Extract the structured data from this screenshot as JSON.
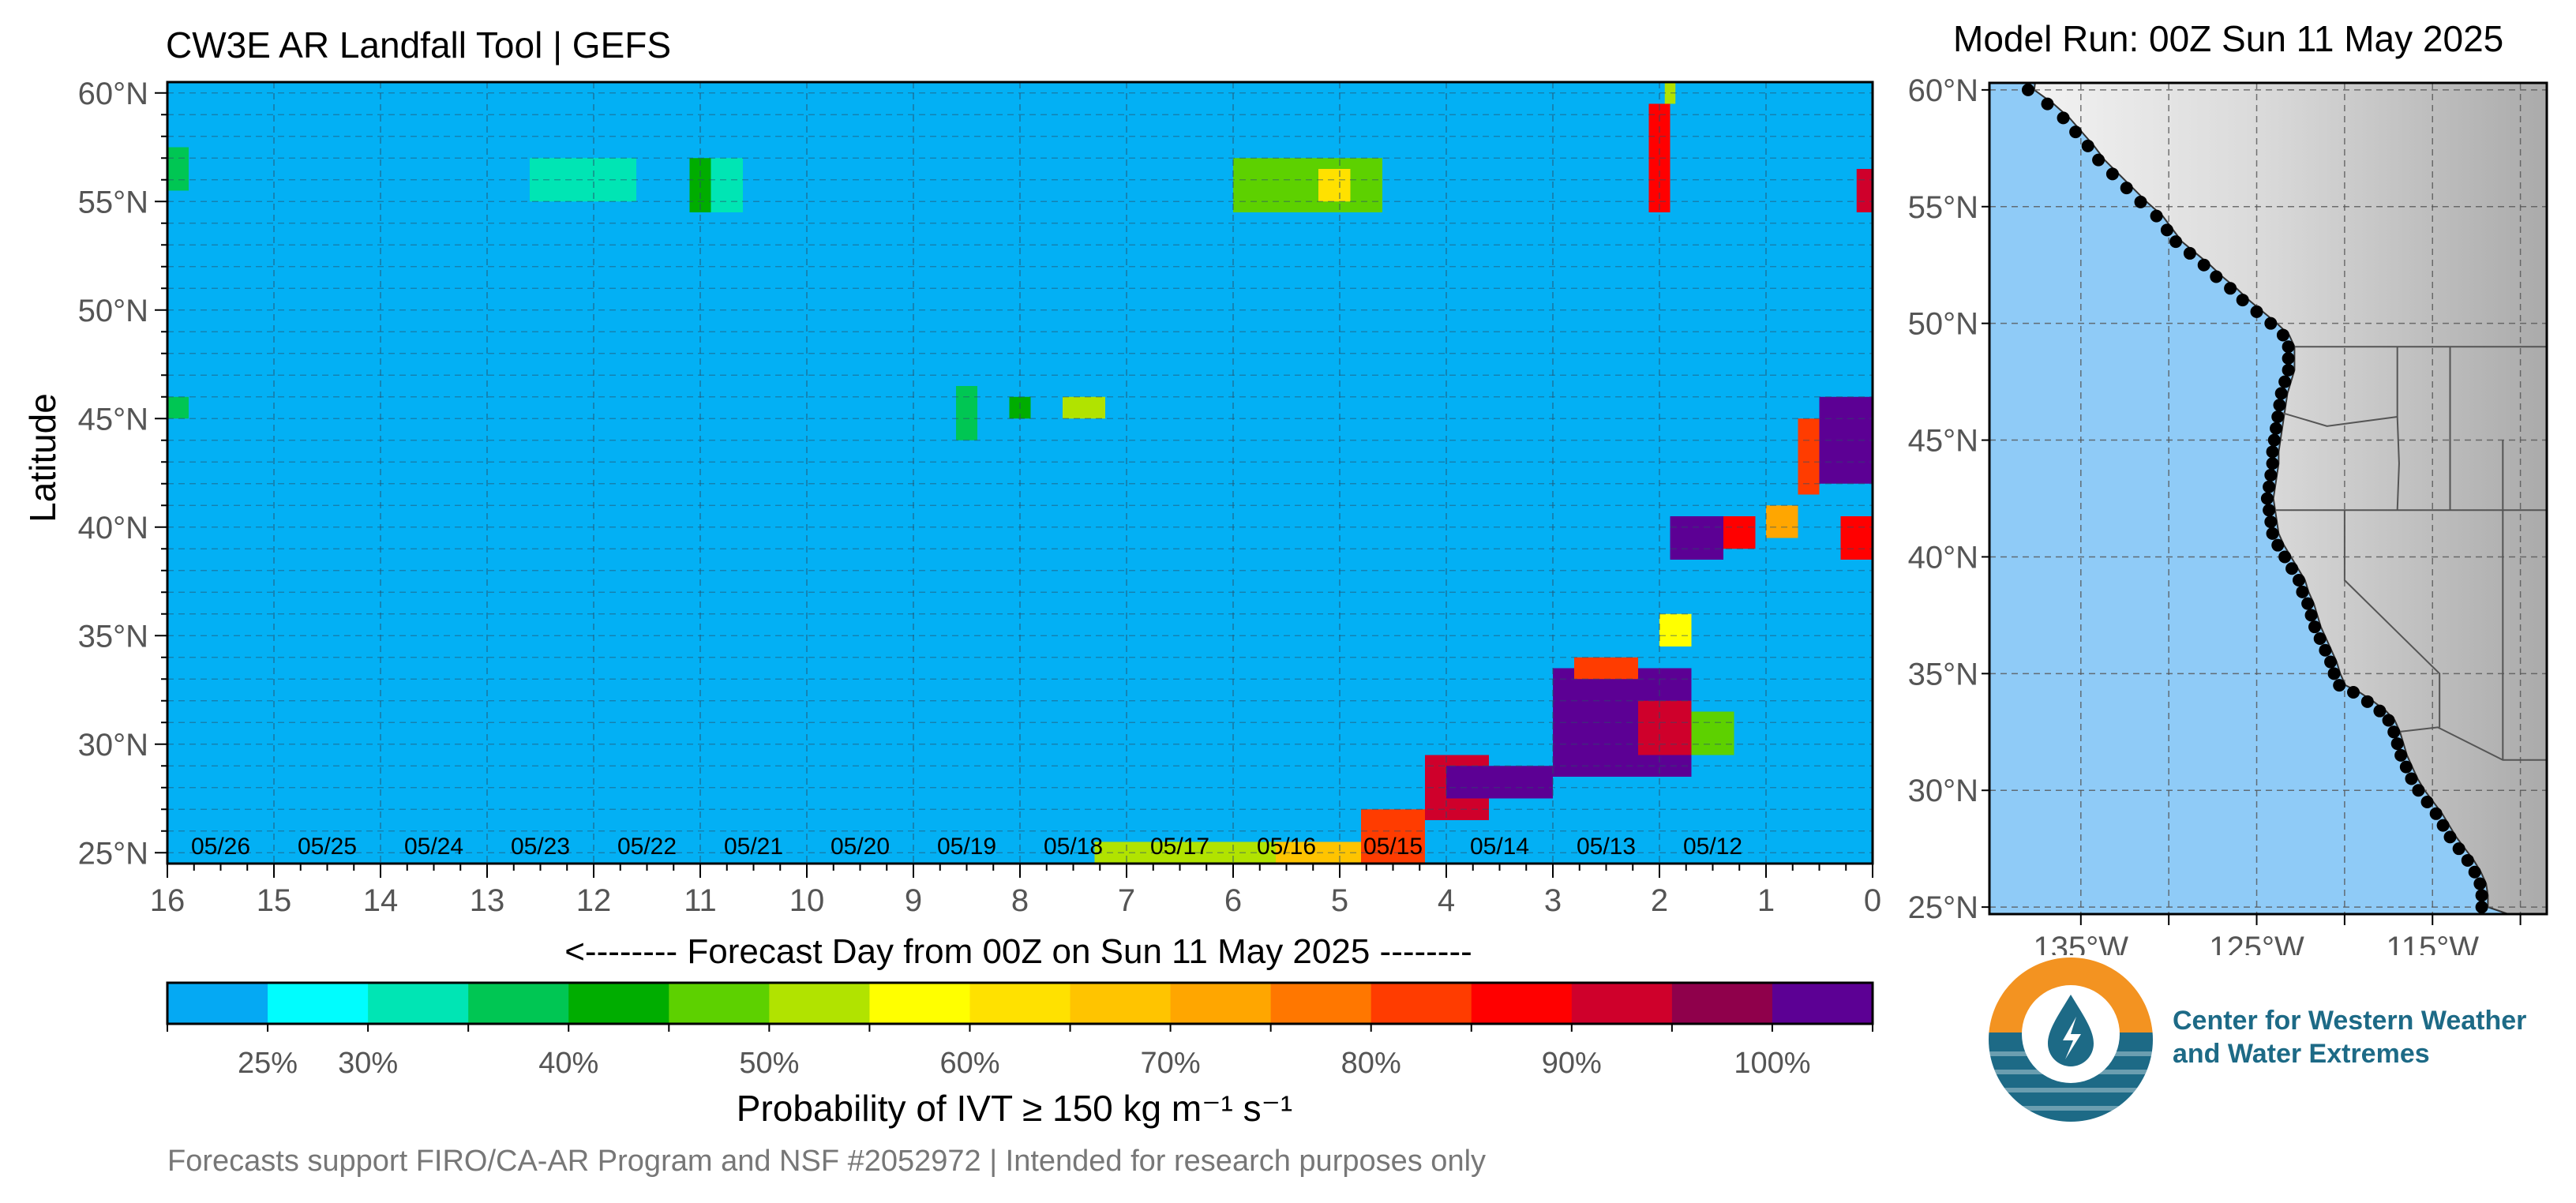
{
  "header": {
    "title": "CW3E AR Landfall Tool | GEFS",
    "model_run": "Model Run: 00Z Sun 11 May 2025"
  },
  "chart_data": [
    {
      "type": "heatmap",
      "title": "CW3E AR Landfall Tool | GEFS",
      "ylabel": "Latitude",
      "xlabel": "<-------- Forecast Day from 00Z on Sun 11 May 2025 --------",
      "x_ticks": [
        "16",
        "15",
        "14",
        "13",
        "12",
        "11",
        "10",
        "9",
        "8",
        "7",
        "6",
        "5",
        "4",
        "3",
        "2",
        "1",
        "0"
      ],
      "xlim": [
        16,
        0
      ],
      "y_ticks": [
        "25°N",
        "30°N",
        "35°N",
        "40°N",
        "45°N",
        "50°N",
        "55°N",
        "60°N"
      ],
      "ylim": [
        24.5,
        60.5
      ],
      "date_labels": [
        {
          "day": 15.5,
          "text": "05/26"
        },
        {
          "day": 14.5,
          "text": "05/25"
        },
        {
          "day": 13.5,
          "text": "05/24"
        },
        {
          "day": 12.5,
          "text": "05/23"
        },
        {
          "day": 11.5,
          "text": "05/22"
        },
        {
          "day": 10.5,
          "text": "05/21"
        },
        {
          "day": 9.5,
          "text": "05/20"
        },
        {
          "day": 8.5,
          "text": "05/19"
        },
        {
          "day": 7.5,
          "text": "05/18"
        },
        {
          "day": 6.5,
          "text": "05/17"
        },
        {
          "day": 5.5,
          "text": "05/16"
        },
        {
          "day": 4.5,
          "text": "05/15"
        },
        {
          "day": 3.5,
          "text": "05/14"
        },
        {
          "day": 2.5,
          "text": "05/13"
        },
        {
          "day": 1.5,
          "text": "05/12"
        }
      ],
      "background_color": "#03b0f4",
      "grid": true,
      "probability_cells": [
        {
          "day_from": 16.0,
          "day_to": 15.8,
          "lat_from": 55.5,
          "lat_to": 57.5,
          "p": 35
        },
        {
          "day_from": 16.0,
          "day_to": 15.8,
          "lat_from": 45.0,
          "lat_to": 46.0,
          "p": 35
        },
        {
          "day_from": 12.6,
          "day_to": 11.6,
          "lat_from": 55.0,
          "lat_to": 57.0,
          "p": 30
        },
        {
          "day_from": 11.1,
          "day_to": 10.6,
          "lat_from": 54.5,
          "lat_to": 57.0,
          "p": 30
        },
        {
          "day_from": 11.1,
          "day_to": 10.9,
          "lat_from": 54.5,
          "lat_to": 57.0,
          "p": 40
        },
        {
          "day_from": 8.6,
          "day_to": 8.4,
          "lat_from": 44.0,
          "lat_to": 46.5,
          "p": 35
        },
        {
          "day_from": 8.1,
          "day_to": 7.9,
          "lat_from": 45.0,
          "lat_to": 46.0,
          "p": 40
        },
        {
          "day_from": 7.6,
          "day_to": 7.2,
          "lat_from": 45.0,
          "lat_to": 46.0,
          "p": 50
        },
        {
          "day_from": 6.0,
          "day_to": 4.6,
          "lat_from": 54.5,
          "lat_to": 57.0,
          "p": 45
        },
        {
          "day_from": 5.2,
          "day_to": 4.9,
          "lat_from": 55.0,
          "lat_to": 56.5,
          "p": 60
        },
        {
          "day_from": 7.3,
          "day_to": 5.6,
          "lat_from": 24.5,
          "lat_to": 25.5,
          "p": 50
        },
        {
          "day_from": 5.6,
          "day_to": 4.8,
          "lat_from": 24.5,
          "lat_to": 25.5,
          "p": 65
        },
        {
          "day_from": 4.8,
          "day_to": 4.2,
          "lat_from": 24.5,
          "lat_to": 27.0,
          "p": 80
        },
        {
          "day_from": 4.2,
          "day_to": 3.6,
          "lat_from": 26.5,
          "lat_to": 29.5,
          "p": 90
        },
        {
          "day_from": 4.0,
          "day_to": 3.0,
          "lat_from": 27.5,
          "lat_to": 29.0,
          "p": 100
        },
        {
          "day_from": 3.0,
          "day_to": 1.7,
          "lat_from": 28.5,
          "lat_to": 33.5,
          "p": 100
        },
        {
          "day_from": 2.8,
          "day_to": 2.2,
          "lat_from": 33.0,
          "lat_to": 34.0,
          "p": 80
        },
        {
          "day_from": 2.2,
          "day_to": 1.7,
          "lat_from": 29.5,
          "lat_to": 32.0,
          "p": 90
        },
        {
          "day_from": 1.7,
          "day_to": 1.3,
          "lat_from": 29.5,
          "lat_to": 31.5,
          "p": 45
        },
        {
          "day_from": 2.0,
          "day_to": 1.7,
          "lat_from": 34.5,
          "lat_to": 36.0,
          "p": 55
        },
        {
          "day_from": 1.9,
          "day_to": 1.4,
          "lat_from": 38.5,
          "lat_to": 40.5,
          "p": 100
        },
        {
          "day_from": 1.4,
          "day_to": 1.1,
          "lat_from": 39.0,
          "lat_to": 40.5,
          "p": 85
        },
        {
          "day_from": 1.0,
          "day_to": 0.7,
          "lat_from": 39.5,
          "lat_to": 41.0,
          "p": 70
        },
        {
          "day_from": 0.5,
          "day_to": 0.0,
          "lat_from": 42.0,
          "lat_to": 46.0,
          "p": 100
        },
        {
          "day_from": 0.7,
          "day_to": 0.5,
          "lat_from": 41.5,
          "lat_to": 45.0,
          "p": 80
        },
        {
          "day_from": 0.3,
          "day_to": 0.0,
          "lat_from": 38.5,
          "lat_to": 40.5,
          "p": 85
        },
        {
          "day_from": 2.1,
          "day_to": 1.9,
          "lat_from": 54.5,
          "lat_to": 59.5,
          "p": 85
        },
        {
          "day_from": 1.95,
          "day_to": 1.85,
          "lat_from": 59.5,
          "lat_to": 60.5,
          "p": 50
        },
        {
          "day_from": 0.15,
          "day_to": 0.0,
          "lat_from": 54.5,
          "lat_to": 56.5,
          "p": 90
        }
      ],
      "colorbar": {
        "colors": [
          "#05a9f3",
          "#00fdfe",
          "#00e5b4",
          "#00c653",
          "#00ad00",
          "#5dd100",
          "#b1e300",
          "#ffff00",
          "#ffe100",
          "#ffc400",
          "#ffa600",
          "#ff7700",
          "#ff3c00",
          "#ff0000",
          "#cf002b",
          "#8f004b",
          "#5c0094"
        ],
        "tick_labels": [
          "25%",
          "30%",
          "40%",
          "50%",
          "60%",
          "70%",
          "80%",
          "90%",
          "100%"
        ],
        "label": "Probability of IVT ≥ 150 kg m⁻¹ s⁻¹"
      }
    },
    {
      "type": "map",
      "x_ticks": [
        "135°W",
        "125°W",
        "115°W"
      ],
      "y_ticks": [
        "25°N",
        "30°N",
        "35°N",
        "40°N",
        "45°N",
        "50°N",
        "55°N",
        "60°N"
      ],
      "ocean_color": "#8fcbf7",
      "coastal_points": [
        [
          -138.0,
          60.0
        ],
        [
          -136.9,
          59.4
        ],
        [
          -136.0,
          58.8
        ],
        [
          -135.3,
          58.2
        ],
        [
          -134.6,
          57.6
        ],
        [
          -134.0,
          57.0
        ],
        [
          -133.2,
          56.4
        ],
        [
          -132.4,
          55.8
        ],
        [
          -131.6,
          55.2
        ],
        [
          -130.7,
          54.6
        ],
        [
          -130.1,
          54.0
        ],
        [
          -129.6,
          53.5
        ],
        [
          -128.8,
          53.0
        ],
        [
          -128.0,
          52.5
        ],
        [
          -127.3,
          52.0
        ],
        [
          -126.5,
          51.5
        ],
        [
          -125.8,
          51.0
        ],
        [
          -125.0,
          50.5
        ],
        [
          -124.2,
          50.0
        ],
        [
          -123.5,
          49.5
        ],
        [
          -123.2,
          49.0
        ],
        [
          -123.2,
          48.5
        ],
        [
          -123.2,
          48.0
        ],
        [
          -123.4,
          47.5
        ],
        [
          -123.6,
          47.0
        ],
        [
          -123.7,
          46.5
        ],
        [
          -123.8,
          46.0
        ],
        [
          -123.9,
          45.5
        ],
        [
          -124.0,
          45.0
        ],
        [
          -124.1,
          44.5
        ],
        [
          -124.1,
          44.0
        ],
        [
          -124.2,
          43.5
        ],
        [
          -124.3,
          43.0
        ],
        [
          -124.4,
          42.5
        ],
        [
          -124.3,
          42.0
        ],
        [
          -124.2,
          41.5
        ],
        [
          -124.1,
          41.0
        ],
        [
          -123.8,
          40.5
        ],
        [
          -123.4,
          40.0
        ],
        [
          -123.0,
          39.5
        ],
        [
          -122.6,
          39.0
        ],
        [
          -122.4,
          38.5
        ],
        [
          -122.1,
          38.0
        ],
        [
          -121.9,
          37.5
        ],
        [
          -121.7,
          37.0
        ],
        [
          -121.4,
          36.5
        ],
        [
          -121.1,
          36.0
        ],
        [
          -120.8,
          35.5
        ],
        [
          -120.6,
          35.0
        ],
        [
          -120.3,
          34.5
        ],
        [
          -119.5,
          34.2
        ],
        [
          -118.7,
          33.8
        ],
        [
          -118.0,
          33.4
        ],
        [
          -117.5,
          33.0
        ],
        [
          -117.2,
          32.5
        ],
        [
          -117.0,
          32.0
        ],
        [
          -116.8,
          31.5
        ],
        [
          -116.5,
          31.0
        ],
        [
          -116.2,
          30.5
        ],
        [
          -115.8,
          30.0
        ],
        [
          -115.3,
          29.5
        ],
        [
          -114.8,
          29.0
        ],
        [
          -114.4,
          28.5
        ],
        [
          -114.0,
          28.0
        ],
        [
          -113.5,
          27.5
        ],
        [
          -113.0,
          27.0
        ],
        [
          -112.6,
          26.5
        ],
        [
          -112.3,
          26.0
        ],
        [
          -112.2,
          25.5
        ],
        [
          -112.2,
          25.0
        ]
      ]
    }
  ],
  "logo": {
    "line1": "Center for Western Weather",
    "line2": "and Water Extremes",
    "colors": {
      "orange": "#f39321",
      "teal": "#1d6a86"
    }
  },
  "footer": "Forecasts support FIRO/CA-AR Program and NSF #2052972 | Intended for research purposes only"
}
